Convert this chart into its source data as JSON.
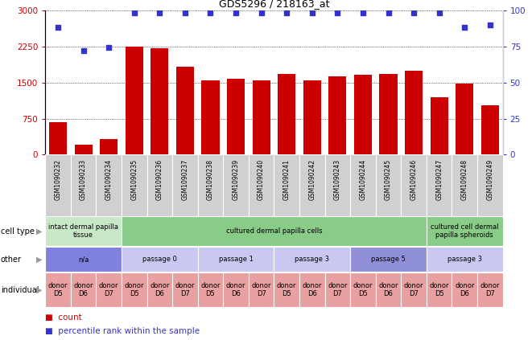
{
  "title": "GDS5296 / 218163_at",
  "samples": [
    "GSM1090232",
    "GSM1090233",
    "GSM1090234",
    "GSM1090235",
    "GSM1090236",
    "GSM1090237",
    "GSM1090238",
    "GSM1090239",
    "GSM1090240",
    "GSM1090241",
    "GSM1090242",
    "GSM1090243",
    "GSM1090244",
    "GSM1090245",
    "GSM1090246",
    "GSM1090247",
    "GSM1090248",
    "GSM1090249"
  ],
  "counts": [
    680,
    200,
    330,
    2250,
    2210,
    1820,
    1550,
    1580,
    1540,
    1680,
    1550,
    1620,
    1660,
    1680,
    1750,
    1200,
    1470,
    1030
  ],
  "percentiles": [
    88,
    72,
    74,
    98,
    98,
    98,
    98,
    98,
    98,
    98,
    98,
    98,
    98,
    98,
    98,
    98,
    88,
    90
  ],
  "ylim_left": [
    0,
    3000
  ],
  "ylim_right": [
    0,
    100
  ],
  "yticks_left": [
    0,
    750,
    1500,
    2250,
    3000
  ],
  "yticks_right": [
    0,
    25,
    50,
    75,
    100
  ],
  "bar_color": "#cc0000",
  "dot_color": "#3333cc",
  "cell_type_groups": [
    {
      "label": "intact dermal papilla\ntissue",
      "start": 0,
      "end": 3,
      "color": "#c8e8c8"
    },
    {
      "label": "cultured dermal papilla cells",
      "start": 3,
      "end": 15,
      "color": "#88cc88"
    },
    {
      "label": "cultured cell dermal\npapilla spheroids",
      "start": 15,
      "end": 18,
      "color": "#88cc88"
    }
  ],
  "other_groups": [
    {
      "label": "n/a",
      "start": 0,
      "end": 3,
      "color": "#8080e0"
    },
    {
      "label": "passage 0",
      "start": 3,
      "end": 6,
      "color": "#c8c8f0"
    },
    {
      "label": "passage 1",
      "start": 6,
      "end": 9,
      "color": "#c8c8f0"
    },
    {
      "label": "passage 3",
      "start": 9,
      "end": 12,
      "color": "#c8c8f0"
    },
    {
      "label": "passage 5",
      "start": 12,
      "end": 15,
      "color": "#9090d8"
    },
    {
      "label": "passage 3",
      "start": 15,
      "end": 18,
      "color": "#c8c8f0"
    }
  ],
  "individual_groups": [
    {
      "label": "donor\nD5",
      "start": 0,
      "end": 1,
      "color": "#e8a0a0"
    },
    {
      "label": "donor\nD6",
      "start": 1,
      "end": 2,
      "color": "#e8a0a0"
    },
    {
      "label": "donor\nD7",
      "start": 2,
      "end": 3,
      "color": "#e8a0a0"
    },
    {
      "label": "donor\nD5",
      "start": 3,
      "end": 4,
      "color": "#e8a0a0"
    },
    {
      "label": "donor\nD6",
      "start": 4,
      "end": 5,
      "color": "#e8a0a0"
    },
    {
      "label": "donor\nD7",
      "start": 5,
      "end": 6,
      "color": "#e8a0a0"
    },
    {
      "label": "donor\nD5",
      "start": 6,
      "end": 7,
      "color": "#e8a0a0"
    },
    {
      "label": "donor\nD6",
      "start": 7,
      "end": 8,
      "color": "#e8a0a0"
    },
    {
      "label": "donor\nD7",
      "start": 8,
      "end": 9,
      "color": "#e8a0a0"
    },
    {
      "label": "donor\nD5",
      "start": 9,
      "end": 10,
      "color": "#e8a0a0"
    },
    {
      "label": "donor\nD6",
      "start": 10,
      "end": 11,
      "color": "#e8a0a0"
    },
    {
      "label": "donor\nD7",
      "start": 11,
      "end": 12,
      "color": "#e8a0a0"
    },
    {
      "label": "donor\nD5",
      "start": 12,
      "end": 13,
      "color": "#e8a0a0"
    },
    {
      "label": "donor\nD6",
      "start": 13,
      "end": 14,
      "color": "#e8a0a0"
    },
    {
      "label": "donor\nD7",
      "start": 14,
      "end": 15,
      "color": "#e8a0a0"
    },
    {
      "label": "donor\nD5",
      "start": 15,
      "end": 16,
      "color": "#e8a0a0"
    },
    {
      "label": "donor\nD6",
      "start": 16,
      "end": 17,
      "color": "#e8a0a0"
    },
    {
      "label": "donor\nD7",
      "start": 17,
      "end": 18,
      "color": "#e8a0a0"
    }
  ],
  "axis_label_color_left": "#cc0000",
  "axis_label_color_right": "#3333cc",
  "sample_box_color": "#d0d0d0",
  "arrow_color": "#999999"
}
